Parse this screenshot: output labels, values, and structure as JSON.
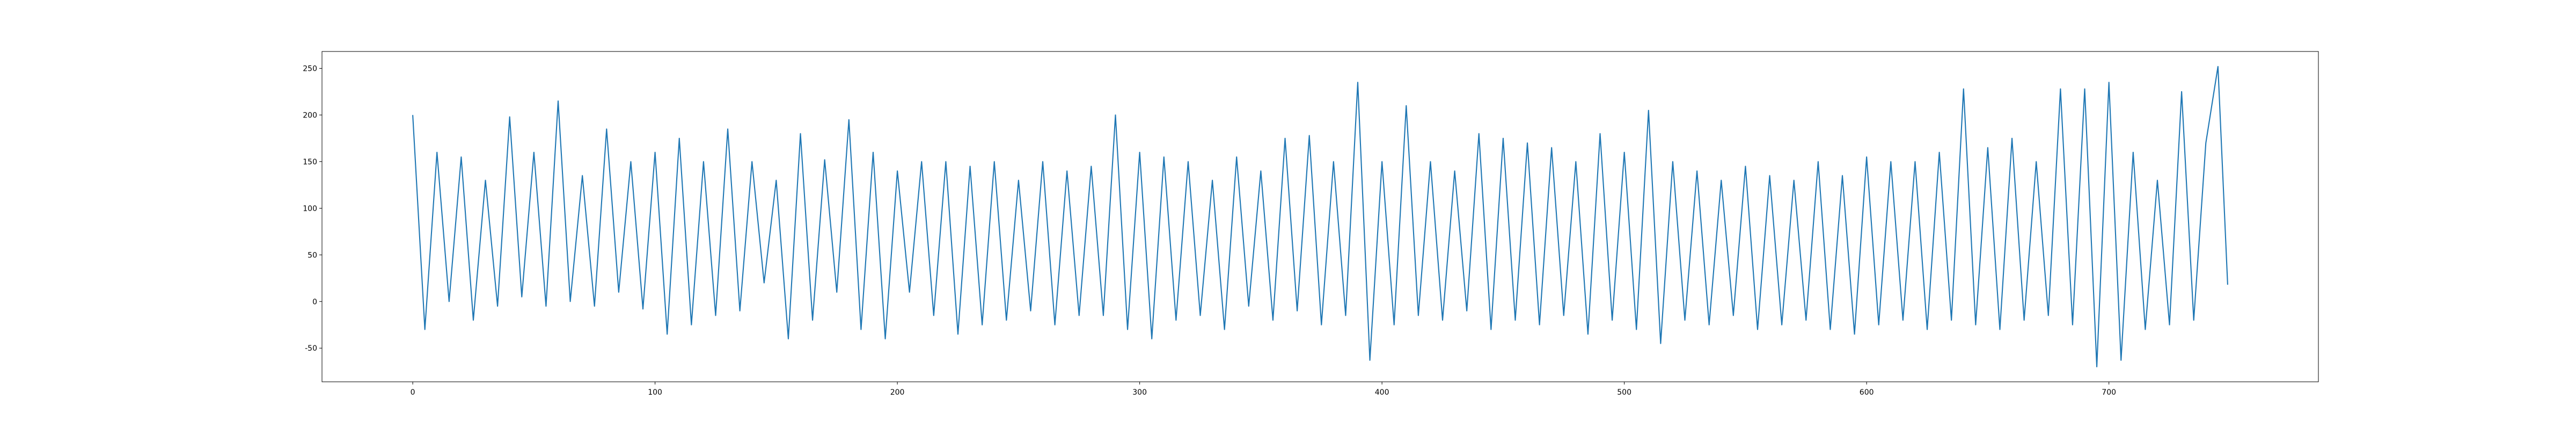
{
  "chart_data": {
    "type": "line",
    "x": [
      0,
      5,
      10,
      15,
      20,
      25,
      30,
      35,
      40,
      45,
      50,
      55,
      60,
      65,
      70,
      75,
      80,
      85,
      90,
      95,
      100,
      105,
      110,
      115,
      120,
      125,
      130,
      135,
      140,
      145,
      150,
      155,
      160,
      165,
      170,
      175,
      180,
      185,
      190,
      195,
      200,
      205,
      210,
      215,
      220,
      225,
      230,
      235,
      240,
      245,
      250,
      255,
      260,
      265,
      270,
      275,
      280,
      285,
      290,
      295,
      300,
      305,
      310,
      315,
      320,
      325,
      330,
      335,
      340,
      345,
      350,
      355,
      360,
      365,
      370,
      375,
      380,
      385,
      390,
      395,
      400,
      405,
      410,
      415,
      420,
      425,
      430,
      435,
      440,
      445,
      450,
      455,
      460,
      465,
      470,
      475,
      480,
      485,
      490,
      495,
      500,
      505,
      510,
      515,
      520,
      525,
      530,
      535,
      540,
      545,
      550,
      555,
      560,
      565,
      570,
      575,
      580,
      585,
      590,
      595,
      600,
      605,
      610,
      615,
      620,
      625,
      630,
      635,
      640,
      645,
      650,
      655,
      660,
      665,
      670,
      675,
      680,
      685,
      690,
      695,
      700,
      705,
      710,
      715,
      720,
      725,
      730,
      735,
      740,
      745,
      749
    ],
    "series": [
      {
        "color": "#1f77b4",
        "values": [
          200,
          -30,
          160,
          0,
          155,
          -20,
          130,
          -5,
          198,
          5,
          160,
          -5,
          215,
          0,
          135,
          -5,
          185,
          10,
          150,
          -8,
          160,
          -35,
          175,
          -25,
          150,
          -15,
          185,
          -10,
          150,
          20,
          130,
          -40,
          180,
          -20,
          152,
          10,
          195,
          -30,
          160,
          -40,
          140,
          10,
          150,
          -15,
          150,
          -35,
          145,
          -25,
          150,
          -20,
          130,
          -10,
          150,
          -25,
          140,
          -15,
          145,
          -15,
          200,
          -30,
          160,
          -40,
          155,
          -20,
          150,
          -15,
          130,
          -30,
          155,
          -5,
          140,
          -20,
          175,
          -10,
          178,
          -25,
          150,
          -15,
          235,
          -63,
          150,
          -25,
          210,
          -15,
          150,
          -20,
          140,
          -10,
          180,
          -30,
          175,
          -20,
          170,
          -25,
          165,
          -15,
          150,
          -35,
          180,
          -20,
          160,
          -30,
          205,
          -45,
          150,
          -20,
          140,
          -25,
          130,
          -15,
          145,
          -30,
          135,
          -25,
          130,
          -20,
          150,
          -30,
          135,
          -35,
          155,
          -25,
          150,
          -20,
          150,
          -30,
          160,
          -20,
          228,
          -25,
          165,
          -30,
          175,
          -20,
          150,
          -15,
          228,
          -25,
          228,
          -70,
          235,
          -63,
          160,
          -30,
          130,
          -25,
          225,
          -20,
          170,
          252,
          18
        ]
      }
    ],
    "xlim": [
      -37.45,
      786.45
    ],
    "ylim": [
      -86.1,
      268.1
    ],
    "xticks": [
      0,
      100,
      200,
      300,
      400,
      500,
      600,
      700
    ],
    "yticks": [
      -50,
      0,
      50,
      100,
      150,
      200,
      250
    ]
  }
}
